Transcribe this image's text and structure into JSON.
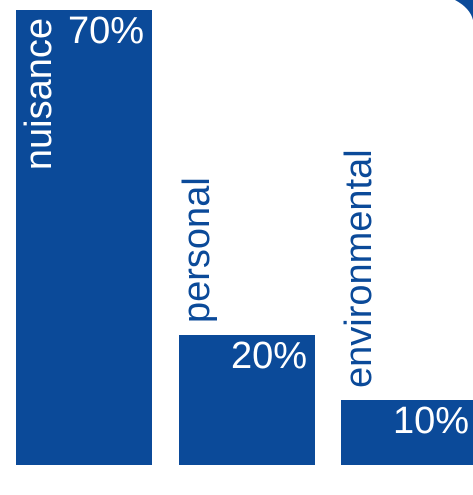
{
  "chart_data": {
    "type": "bar",
    "categories": [
      "nuisance",
      "personal",
      "environmental"
    ],
    "values": [
      70,
      20,
      10
    ],
    "value_labels": [
      "70%",
      "20%",
      "10%"
    ],
    "ylim": [
      0,
      70
    ],
    "grid": false,
    "bar_color": "#0b4a99",
    "title": "",
    "xlabel": "",
    "ylabel": ""
  }
}
